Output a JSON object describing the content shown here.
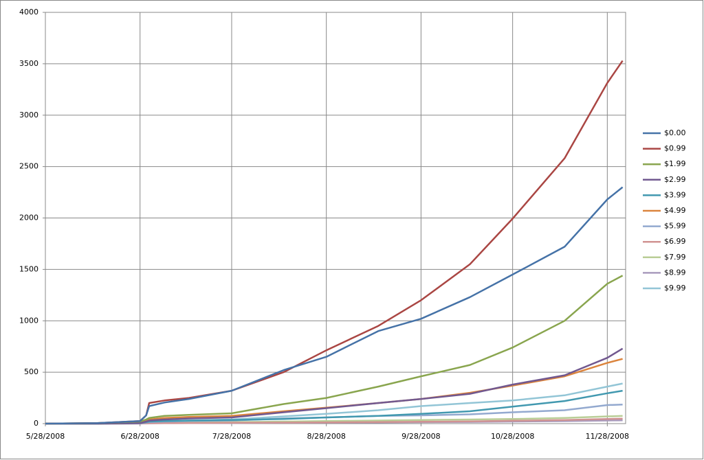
{
  "chart_data": {
    "type": "line",
    "x": [
      "2008-05-28",
      "2008-06-14",
      "2008-06-28",
      "2008-06-30",
      "2008-07-01",
      "2008-07-06",
      "2008-07-14",
      "2008-07-28",
      "2008-08-14",
      "2008-08-28",
      "2008-09-14",
      "2008-09-28",
      "2008-10-14",
      "2008-10-28",
      "2008-11-14",
      "2008-11-28",
      "2008-12-03"
    ],
    "xlim": [
      "2008-05-28",
      "2008-12-04"
    ],
    "xticks": [
      {
        "value": "2008-05-28",
        "label": "5/28/2008"
      },
      {
        "value": "2008-06-28",
        "label": "6/28/2008"
      },
      {
        "value": "2008-07-28",
        "label": "7/28/2008"
      },
      {
        "value": "2008-08-28",
        "label": "8/28/2008"
      },
      {
        "value": "2008-09-28",
        "label": "9/28/2008"
      },
      {
        "value": "2008-10-28",
        "label": "10/28/2008"
      },
      {
        "value": "2008-11-28",
        "label": "11/28/2008"
      }
    ],
    "ylim": [
      0,
      4000
    ],
    "yticks": [
      0,
      500,
      1000,
      1500,
      2000,
      2500,
      3000,
      3500,
      4000
    ],
    "grid": true,
    "legend": "right",
    "series": [
      {
        "name": "$0.00",
        "color": "#4572a7",
        "values": [
          0,
          5,
          25,
          80,
          170,
          205,
          240,
          320,
          520,
          650,
          900,
          1020,
          1230,
          1450,
          1720,
          2180,
          2300
        ]
      },
      {
        "name": "$0.99",
        "color": "#aa4643",
        "values": [
          0,
          5,
          25,
          80,
          200,
          225,
          250,
          320,
          500,
          713,
          950,
          1200,
          1550,
          1993,
          2580,
          3313,
          3530
        ]
      },
      {
        "name": "$1.99",
        "color": "#89a54e",
        "values": [
          0,
          5,
          20,
          40,
          55,
          75,
          85,
          100,
          190,
          250,
          360,
          460,
          570,
          740,
          1000,
          1360,
          1440
        ]
      },
      {
        "name": "$2.99",
        "color": "#71588f",
        "values": [
          0,
          0,
          5,
          20,
          30,
          40,
          50,
          60,
          110,
          150,
          200,
          240,
          290,
          380,
          470,
          640,
          730
        ]
      },
      {
        "name": "$3.99",
        "color": "#4198af",
        "values": [
          0,
          0,
          5,
          15,
          20,
          25,
          30,
          35,
          45,
          60,
          75,
          95,
          120,
          165,
          220,
          295,
          320
        ]
      },
      {
        "name": "$4.99",
        "color": "#db843d",
        "values": [
          0,
          0,
          10,
          30,
          40,
          55,
          65,
          75,
          120,
          155,
          200,
          240,
          300,
          370,
          460,
          590,
          630
        ]
      },
      {
        "name": "$5.99",
        "color": "#93a9cf",
        "values": [
          0,
          0,
          3,
          10,
          15,
          20,
          25,
          30,
          50,
          60,
          75,
          80,
          90,
          110,
          130,
          180,
          185
        ]
      },
      {
        "name": "$6.99",
        "color": "#d19392",
        "values": [
          0,
          0,
          1,
          3,
          4,
          5,
          6,
          8,
          10,
          12,
          15,
          18,
          22,
          28,
          35,
          45,
          48
        ]
      },
      {
        "name": "$7.99",
        "color": "#b9cd96",
        "values": [
          0,
          0,
          2,
          5,
          7,
          10,
          12,
          15,
          20,
          25,
          30,
          35,
          40,
          45,
          55,
          70,
          75
        ]
      },
      {
        "name": "$8.99",
        "color": "#a99bbd",
        "values": [
          0,
          0,
          1,
          2,
          3,
          4,
          5,
          6,
          8,
          10,
          12,
          14,
          16,
          20,
          24,
          30,
          32
        ]
      },
      {
        "name": "$9.99",
        "color": "#92c5d6",
        "values": [
          0,
          0,
          3,
          10,
          15,
          25,
          30,
          40,
          70,
          95,
          130,
          170,
          200,
          225,
          275,
          360,
          390
        ]
      }
    ]
  }
}
